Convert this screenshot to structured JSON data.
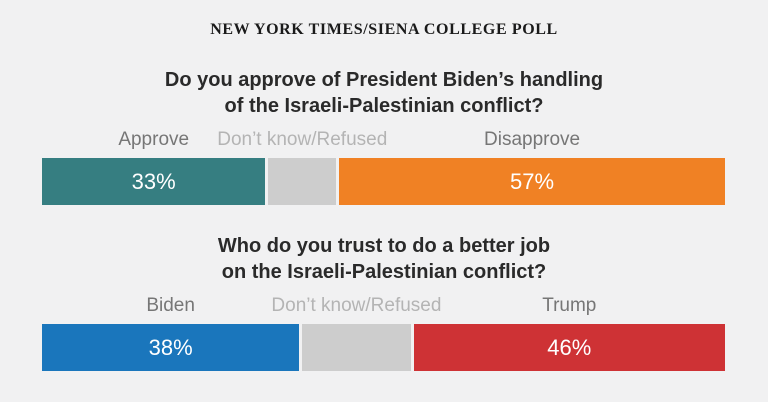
{
  "page": {
    "background": "#f1f1f2",
    "gap_color": "#ffffff"
  },
  "header": {
    "title": "NEW YORK TIMES/SIENA COLLEGE POLL"
  },
  "chart_data": [
    {
      "type": "bar",
      "orientation": "horizontal-stacked",
      "unit": "%",
      "title": "Do you approve of President Biden’s handling of the Israeli-Palestinian conflict?",
      "question_lines": [
        "Do you approve of President Biden’s handling",
        "of the Israeli-Palestinian conflict?"
      ],
      "segments": [
        {
          "label": "Approve",
          "value": 33,
          "display": "33%",
          "color": "#367e81",
          "label_color": "#767676"
        },
        {
          "label": "Don’t know/Refused",
          "value": 10,
          "display": "",
          "color": "#cdcdcd",
          "label_color": "#b4b4b4"
        },
        {
          "label": "Disapprove",
          "value": 57,
          "display": "57%",
          "color": "#f08124",
          "label_color": "#767676"
        }
      ]
    },
    {
      "type": "bar",
      "orientation": "horizontal-stacked",
      "unit": "%",
      "title": "Who do you trust to do a better job on the Israeli-Palestinian conflict?",
      "question_lines": [
        "Who do you trust to do a better job",
        "on the Israeli-Palestinian conflict?"
      ],
      "segments": [
        {
          "label": "Biden",
          "value": 38,
          "display": "38%",
          "color": "#1a76bc",
          "label_color": "#767676"
        },
        {
          "label": "Don’t know/Refused",
          "value": 16,
          "display": "",
          "color": "#cdcdcd",
          "label_color": "#b4b4b4"
        },
        {
          "label": "Trump",
          "value": 46,
          "display": "46%",
          "color": "#ce3235",
          "label_color": "#767676"
        }
      ]
    }
  ]
}
